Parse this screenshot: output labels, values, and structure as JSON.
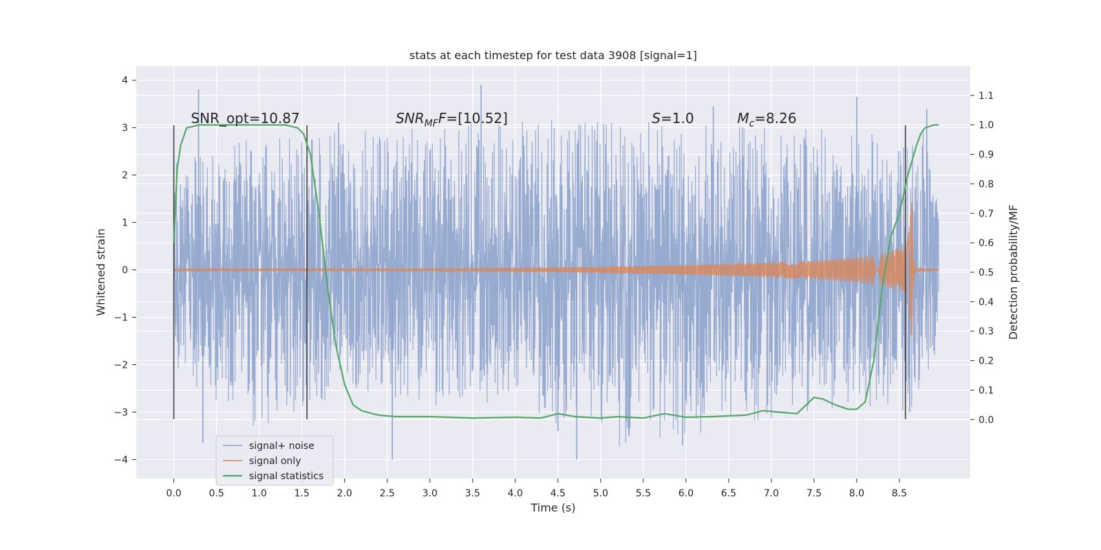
{
  "chart_data": {
    "type": "line",
    "title": "stats at each timestep for test data 3908 [signal=1]",
    "xlabel": "Time (s)",
    "ylabel": "Whitened strain",
    "ylabel_right": "Detection probability/MF",
    "xlim": [
      -0.44,
      9.33
    ],
    "ylim": [
      -4.4,
      4.3
    ],
    "ylim_right": [
      -0.2,
      1.2
    ],
    "x_ticks": [
      "0.0",
      "0.5",
      "1.0",
      "1.5",
      "2.0",
      "2.5",
      "3.0",
      "3.5",
      "4.0",
      "4.5",
      "5.0",
      "5.5",
      "6.0",
      "6.5",
      "7.0",
      "7.5",
      "8.0",
      "8.5"
    ],
    "x_tick_values": [
      0,
      0.5,
      1,
      1.5,
      2,
      2.5,
      3,
      3.5,
      4,
      4.5,
      5,
      5.5,
      6,
      6.5,
      7,
      7.5,
      8,
      8.5
    ],
    "y_ticks": [
      "4",
      "3",
      "2",
      "1",
      "0",
      "−1",
      "−2",
      "−3",
      "−4"
    ],
    "y_tick_values": [
      4,
      3,
      2,
      1,
      0,
      -1,
      -2,
      -3,
      -4
    ],
    "y_right_ticks": [
      "1.1",
      "1.0",
      "0.9",
      "0.8",
      "0.7",
      "0.6",
      "0.5",
      "0.4",
      "0.3",
      "0.2",
      "0.1",
      "0.0"
    ],
    "y_right_tick_values": [
      1.1,
      1.0,
      0.9,
      0.8,
      0.7,
      0.6,
      0.5,
      0.4,
      0.3,
      0.2,
      0.1,
      0.0
    ],
    "grid": true,
    "legend_position": "lower-left",
    "colors": {
      "background": "#eaeaf2",
      "grid": "#ffffff",
      "noise": "#8ea3cc",
      "signal": "#dd8452",
      "statistics": "#55a868",
      "markers": "#404040"
    },
    "series": [
      {
        "name": "signal+ noise",
        "description_values": "dense noise spanning roughly -4 to 3.9",
        "envelope_x": [
          0.0,
          1.0,
          2.0,
          3.0,
          4.0,
          5.0,
          6.0,
          7.0,
          8.0,
          8.5,
          8.8,
          8.96
        ],
        "envelope_high": [
          2.4,
          3.0,
          3.1,
          3.2,
          3.4,
          3.3,
          3.3,
          3.2,
          3.1,
          2.9,
          3.3,
          1.8
        ],
        "envelope_low": [
          -2.2,
          -3.7,
          -2.8,
          -3.2,
          -2.9,
          -4.0,
          -3.7,
          -3.3,
          -3.0,
          -3.2,
          -2.9,
          -1.9
        ],
        "spikes": [
          {
            "x": 0.29,
            "y": 3.8
          },
          {
            "x": 0.34,
            "y": -3.65
          },
          {
            "x": 1.93,
            "y": 3.1
          },
          {
            "x": 2.56,
            "y": -4.0
          },
          {
            "x": 3.6,
            "y": 3.9
          },
          {
            "x": 4.5,
            "y": -3.4
          },
          {
            "x": 4.72,
            "y": -4.0
          },
          {
            "x": 5.33,
            "y": -3.5
          },
          {
            "x": 5.96,
            "y": -3.7
          },
          {
            "x": 6.32,
            "y": 3.45
          },
          {
            "x": 8.0,
            "y": 3.65
          },
          {
            "x": 8.62,
            "y": -3.0
          },
          {
            "x": 8.82,
            "y": 3.4
          }
        ]
      },
      {
        "name": "signal only",
        "description_values": "chirp growing in amplitude toward merger near 8.65 s",
        "x": [
          0,
          3.0,
          4.5,
          5.5,
          6.5,
          7.5,
          8.0,
          8.3,
          8.5,
          8.6,
          8.65,
          8.68,
          8.96
        ],
        "amplitude": [
          0.02,
          0.02,
          0.05,
          0.08,
          0.13,
          0.2,
          0.27,
          0.35,
          0.45,
          0.6,
          1.6,
          0.05,
          0.02
        ]
      },
      {
        "name": "signal statistics",
        "axis": "right",
        "x": [
          0.0,
          0.04,
          0.08,
          0.15,
          0.3,
          0.6,
          1.0,
          1.3,
          1.45,
          1.52,
          1.6,
          1.7,
          1.8,
          1.9,
          2.0,
          2.1,
          2.2,
          2.4,
          2.6,
          3.0,
          3.5,
          4.0,
          4.3,
          4.5,
          4.7,
          5.0,
          5.2,
          5.5,
          5.75,
          6.0,
          6.3,
          6.7,
          6.9,
          7.1,
          7.3,
          7.5,
          7.6,
          7.75,
          7.9,
          8.0,
          8.1,
          8.2,
          8.3,
          8.4,
          8.5,
          8.6,
          8.7,
          8.75,
          8.8,
          8.9,
          8.96
        ],
        "y": [
          0.6,
          0.85,
          0.93,
          0.99,
          1.0,
          1.0,
          1.0,
          1.0,
          0.99,
          0.97,
          0.9,
          0.7,
          0.45,
          0.25,
          0.12,
          0.05,
          0.03,
          0.015,
          0.01,
          0.01,
          0.005,
          0.008,
          0.005,
          0.02,
          0.01,
          0.005,
          0.01,
          0.005,
          0.02,
          0.008,
          0.01,
          0.015,
          0.03,
          0.025,
          0.02,
          0.075,
          0.07,
          0.05,
          0.035,
          0.035,
          0.06,
          0.2,
          0.45,
          0.62,
          0.7,
          0.83,
          0.93,
          0.97,
          0.99,
          1.0,
          1.0
        ]
      }
    ],
    "vertical_markers": [
      0.0,
      1.56,
      8.57
    ],
    "annotations": [
      {
        "text": "SNR_opt=10.87",
        "x": 0.2,
        "y": 3.1
      },
      {
        "text": "SNR",
        "sub": "MF",
        "suffix": "F=[10.52]",
        "x": 2.6,
        "y": 3.1,
        "italic_prefix": true
      },
      {
        "text": "S",
        "suffix": "=1.0",
        "x": 5.6,
        "y": 3.1,
        "italic_prefix": true
      },
      {
        "text": "M",
        "sub": "c",
        "suffix": "=8.26",
        "x": 6.6,
        "y": 3.1,
        "italic_prefix": true
      }
    ]
  }
}
